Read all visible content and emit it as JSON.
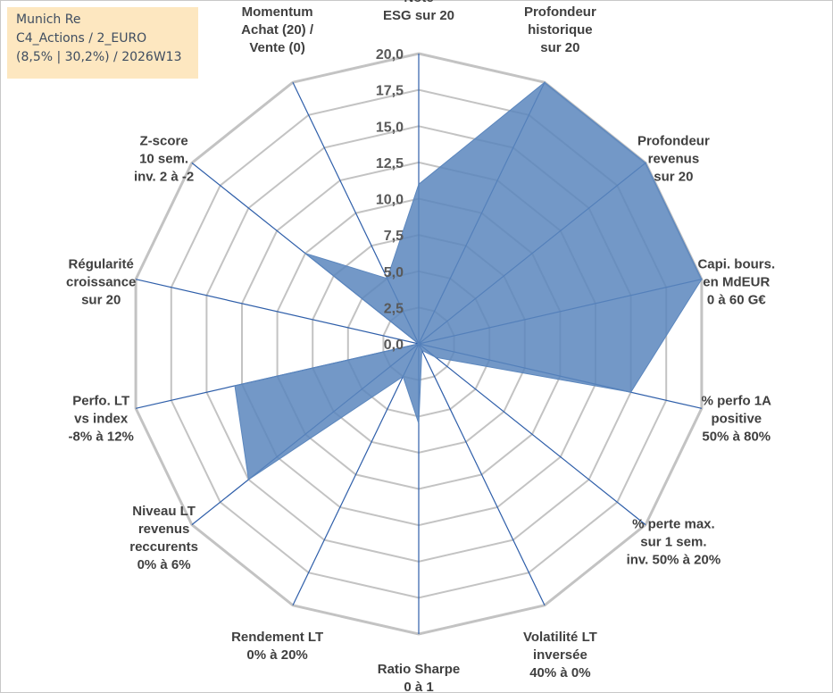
{
  "info": {
    "line1": "Munich Re",
    "line2": "C4_Actions / 2_EURO",
    "line3": "(8,5% | 30,2%) / 2026W13"
  },
  "colors": {
    "fill": "#5b86bd",
    "axis": "#2e5ea9",
    "grid": "#c3c3c3"
  },
  "chart_data": {
    "type": "radar",
    "title": "",
    "rmax": 20,
    "tick_step": 2.5,
    "tick_labels": [
      "0,0",
      "2,5",
      "5,0",
      "7,5",
      "10,0",
      "12,5",
      "15,0",
      "17,5",
      "20,0"
    ],
    "axes": [
      {
        "label": [
          "Note",
          "ESG sur 20"
        ],
        "value": 11
      },
      {
        "label": [
          "Profondeur",
          "historique",
          "sur 20"
        ],
        "value": 20
      },
      {
        "label": [
          "Profondeur",
          "revenus",
          "sur 20"
        ],
        "value": 20
      },
      {
        "label": [
          "Capi. bours.",
          "en MdEUR",
          "0 à 60 G€"
        ],
        "value": 20
      },
      {
        "label": [
          "% perfo 1A",
          "positive",
          "50% à 80%"
        ],
        "value": 15
      },
      {
        "label": [
          "% perte max.",
          "sur 1 sem.",
          "inv. 50% à 20%"
        ],
        "value": 1.5
      },
      {
        "label": [
          "Volatilité LT",
          "inversée",
          "40% à 0%"
        ],
        "value": 0.5
      },
      {
        "label": [
          "Ratio Sharpe",
          "0 à 1"
        ],
        "value": 5.5
      },
      {
        "label": [
          "Rendement LT",
          "0% à 20%"
        ],
        "value": 2.5
      },
      {
        "label": [
          "Niveau LT",
          "revenus",
          "reccurents",
          "0% à 6%"
        ],
        "value": 15
      },
      {
        "label": [
          "Perfo. LT",
          "vs index",
          "-8% à 12%"
        ],
        "value": 13
      },
      {
        "label": [
          "Régularité",
          "croissance",
          "sur 20"
        ],
        "value": 0
      },
      {
        "label": [
          "Z-score",
          "10 sem.",
          "inv. 2 à -2"
        ],
        "value": 10
      },
      {
        "label": [
          "Momentum",
          "Achat (20) /",
          "Vente (0)"
        ],
        "value": 5
      }
    ]
  }
}
